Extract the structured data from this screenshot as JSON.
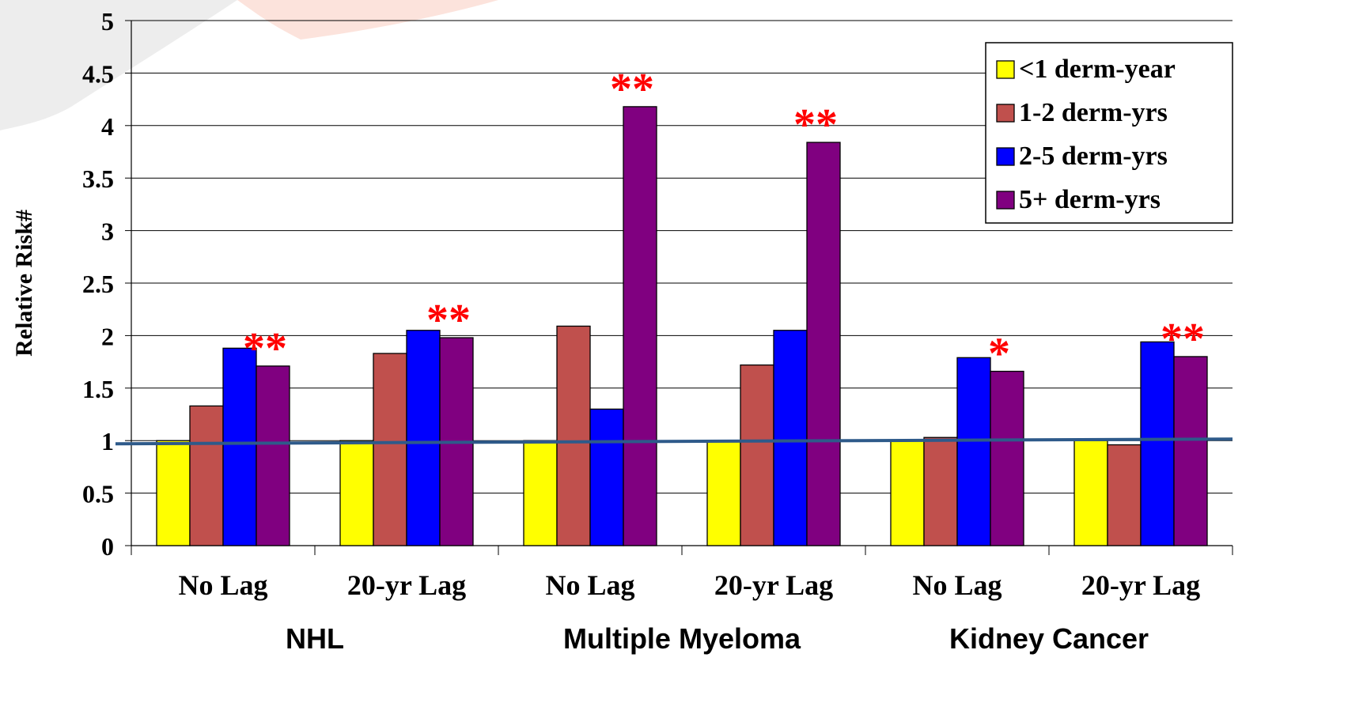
{
  "chart_data": {
    "type": "bar",
    "ylabel": "Relative Risk#",
    "ylim": [
      0,
      5
    ],
    "yticks": [
      0,
      0.5,
      1,
      1.5,
      2,
      2.5,
      3,
      3.5,
      4,
      4.5,
      5
    ],
    "ytick_labels": [
      "0",
      "0.5",
      "1",
      "1.5",
      "2",
      "2.5",
      "3",
      "3.5",
      "4",
      "4.5",
      "5"
    ],
    "grid": true,
    "legend_position": "top-right",
    "reference_line": 1,
    "reference_line_color": "#2E5A8A",
    "categories": [
      "No Lag",
      "20-yr Lag",
      "No Lag",
      "20-yr Lag",
      "No Lag",
      "20-yr Lag"
    ],
    "groups": [
      "NHL",
      "Multiple Myeloma",
      "Kidney Cancer"
    ],
    "series": [
      {
        "name": "<1 derm-year",
        "color": "#FFFF00",
        "values": [
          1.0,
          1.0,
          1.0,
          1.0,
          1.0,
          1.0
        ]
      },
      {
        "name": "1-2 derm-yrs",
        "color": "#C0504D",
        "values": [
          1.33,
          1.83,
          2.09,
          1.72,
          1.03,
          0.96
        ]
      },
      {
        "name": "2-5 derm-yrs",
        "color": "#0000FF",
        "values": [
          1.88,
          2.05,
          1.3,
          2.05,
          1.79,
          1.94
        ]
      },
      {
        "name": "5+ derm-yrs",
        "color": "#800080",
        "values": [
          1.71,
          1.98,
          4.18,
          3.84,
          1.66,
          1.8
        ]
      }
    ],
    "annotations": [
      "**",
      "**",
      "**",
      "**",
      "*",
      "**"
    ],
    "annotation_color": "#FF0000"
  }
}
